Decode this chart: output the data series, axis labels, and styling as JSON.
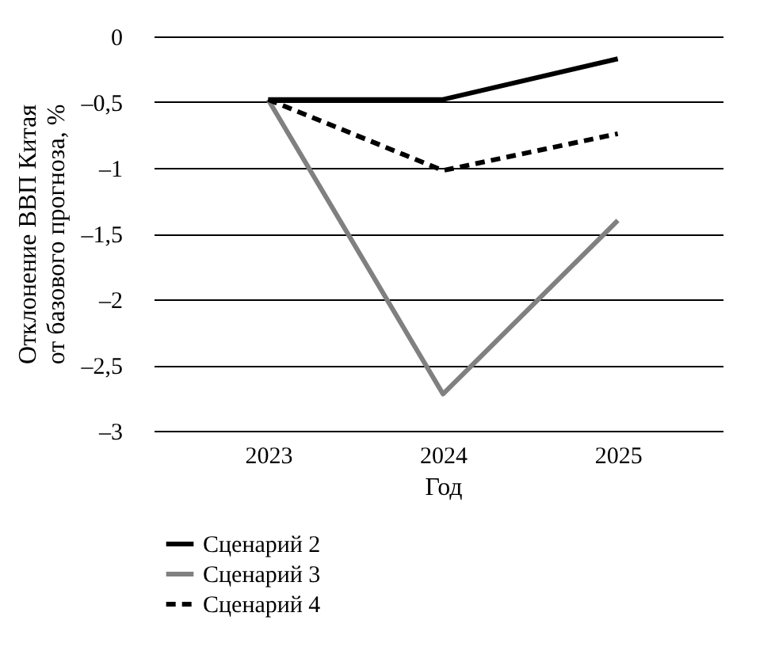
{
  "chart_data": {
    "type": "line",
    "xlabel": "Год",
    "ylabel": "Отклонение ВВП Китая\nот базового прогноза, %",
    "categories": [
      "2023",
      "2024",
      "2025"
    ],
    "series": [
      {
        "name": "Сценарий 2",
        "color": "#000000",
        "line_style": "solid",
        "values": [
          -0.48,
          -0.48,
          -0.17
        ]
      },
      {
        "name": "Сценарий 3",
        "color": "#808080",
        "line_style": "solid",
        "values": [
          -0.48,
          -2.72,
          -1.4
        ]
      },
      {
        "name": "Сценарий 4",
        "color": "#000000",
        "line_style": "dashed",
        "values": [
          -0.48,
          -1.02,
          -0.74
        ]
      }
    ],
    "ylim": [
      -3,
      0
    ],
    "yticks": [
      {
        "value": -3,
        "label": "–3"
      },
      {
        "value": -2.5,
        "label": "–2,5"
      },
      {
        "value": -2,
        "label": "–2"
      },
      {
        "value": -1.5,
        "label": "–1,5"
      },
      {
        "value": -1,
        "label": "–1"
      },
      {
        "value": -0.5,
        "label": "–0,5"
      },
      0
    ],
    "grid": "y",
    "legend": "bottom",
    "marker": "none"
  }
}
